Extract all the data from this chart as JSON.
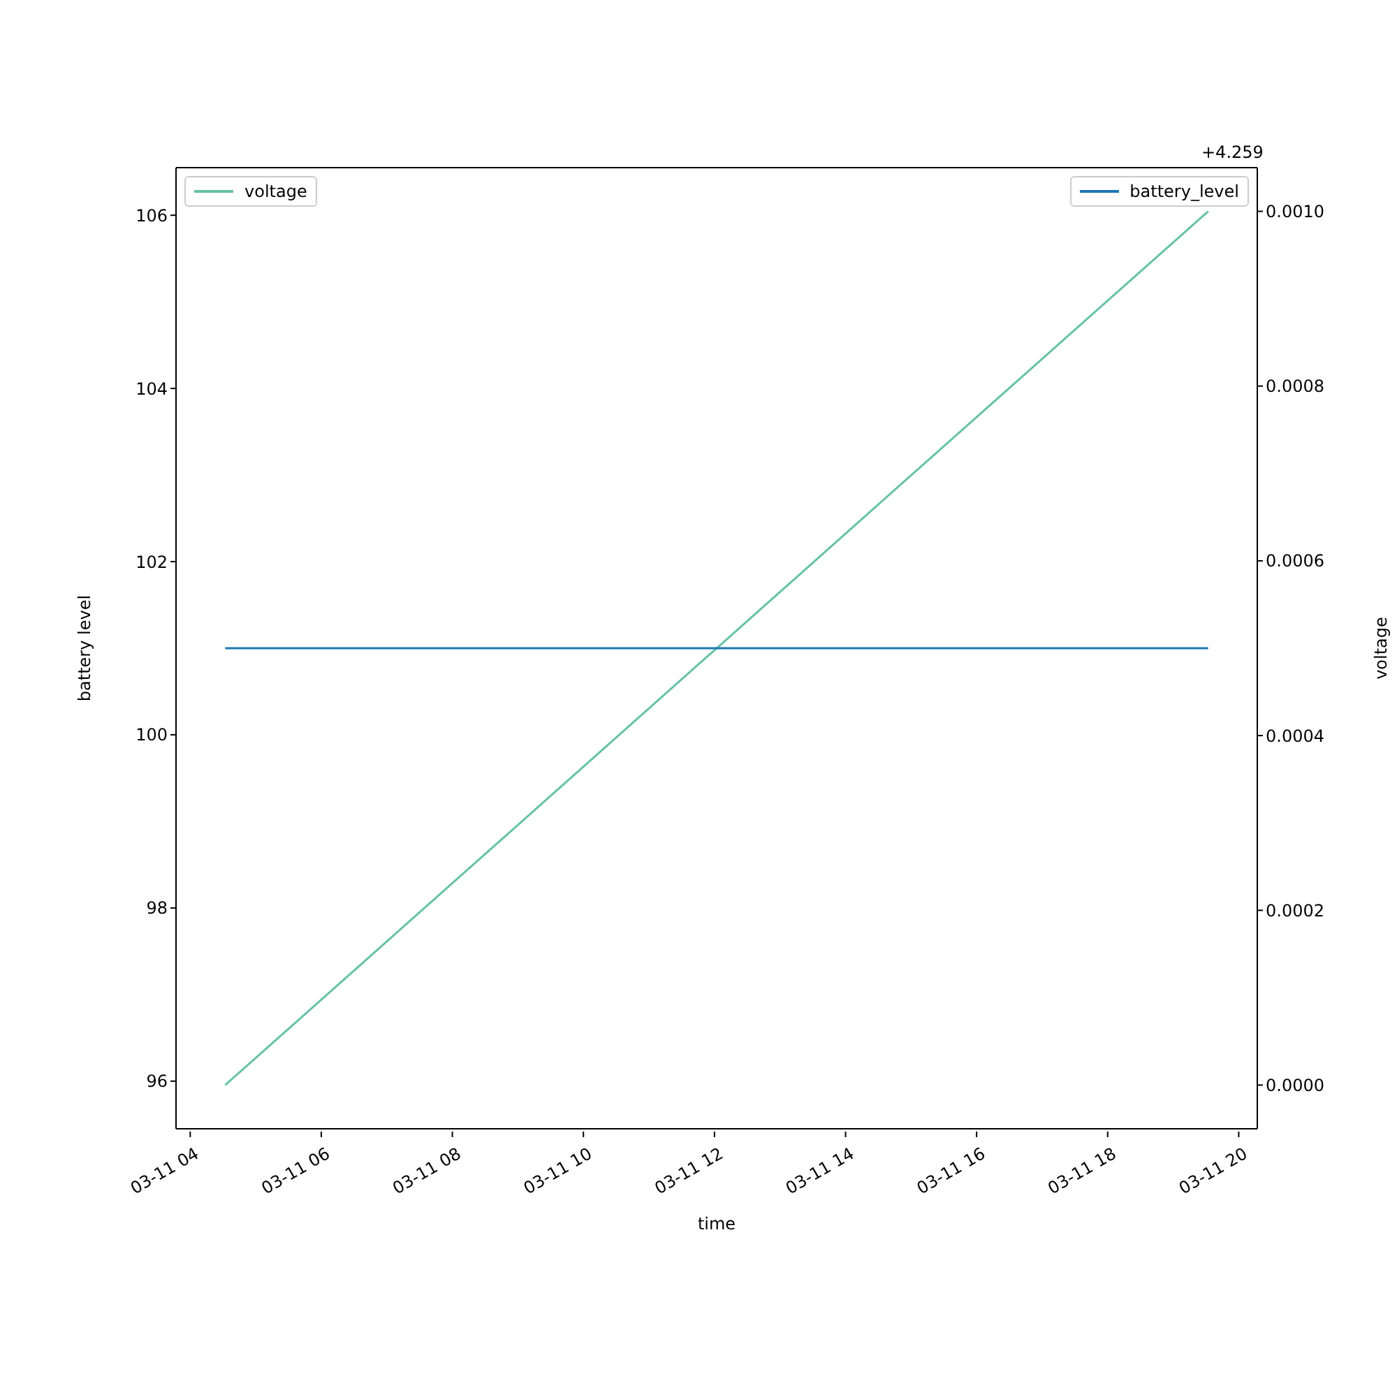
{
  "chart_data": {
    "type": "line",
    "xlabel": "time",
    "ylabel": "battery level",
    "y2label": "voltage",
    "x": [
      "--03-11T04:32",
      "--03-11T19:32"
    ],
    "series": [
      {
        "name": "voltage",
        "color": "#66c2a5",
        "values": [
          0.0,
          0.001
        ],
        "axis": "y2"
      },
      {
        "name": "battery_level",
        "color": "#1f77b4",
        "values": [
          101,
          101
        ]
      }
    ],
    "xlim": [
      "--03-11T03:47",
      "--03-11T20:17"
    ],
    "xticks": [
      {
        "value": "--03-11T04:00",
        "label": "03-11 04"
      },
      {
        "value": "--03-11T06:00",
        "label": "03-11 06"
      },
      {
        "value": "--03-11T08:00",
        "label": "03-11 08"
      },
      {
        "value": "--03-11T10:00",
        "label": "03-11 10"
      },
      {
        "value": "--03-11T12:00",
        "label": "03-11 12"
      },
      {
        "value": "--03-11T14:00",
        "label": "03-11 14"
      },
      {
        "value": "--03-11T16:00",
        "label": "03-11 16"
      },
      {
        "value": "--03-11T18:00",
        "label": "03-11 18"
      },
      {
        "value": "--03-11T20:00",
        "label": "03-11 20"
      }
    ],
    "ylim": [
      95.45,
      106.55
    ],
    "yticks": [
      96,
      98,
      100,
      102,
      104,
      106
    ],
    "y2lim": [
      -5e-05,
      0.00105
    ],
    "y2ticks": [
      {
        "value": 0,
        "label": "0.0000"
      },
      {
        "value": 0.0002,
        "label": "0.0002"
      },
      {
        "value": 0.0004,
        "label": "0.0004"
      },
      {
        "value": 0.0006,
        "label": "0.0006"
      },
      {
        "value": 0.0008,
        "label": "0.0008"
      },
      {
        "value": 0.001,
        "label": "0.0010"
      }
    ],
    "annotations": [
      "+4.259"
    ],
    "legend": "top"
  }
}
